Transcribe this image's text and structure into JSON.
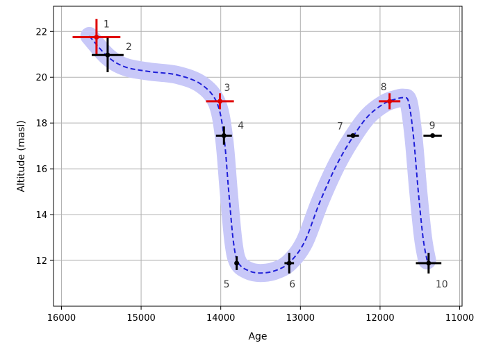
{
  "chart_data": {
    "type": "scatter",
    "xlabel": "Age",
    "ylabel": "Altitude (masl)",
    "xlim": [
      16100,
      10970
    ],
    "ylim": [
      10.0,
      23.1
    ],
    "x_inverted": true,
    "grid": true,
    "xticks": [
      16000,
      15000,
      14000,
      13000,
      12000,
      11000
    ],
    "xtick_labels": [
      "16000",
      "15000",
      "14000",
      "13000",
      "12000",
      "11000"
    ],
    "yticks": [
      12,
      14,
      16,
      18,
      20,
      22
    ],
    "ytick_labels": [
      "12",
      "14",
      "16",
      "18",
      "20",
      "22"
    ],
    "colors": {
      "highlight": "#e00000",
      "normal": "#000000",
      "band": "#c8c8f8",
      "curve": "#1f1fd8",
      "grid": "#b0b0b0"
    },
    "points": [
      {
        "label": "1",
        "x": 15560,
        "y": 21.75,
        "xerr": 300,
        "yerr": 0.8,
        "color": "highlight"
      },
      {
        "label": "2",
        "x": 15420,
        "y": 20.97,
        "xerr": 200,
        "yerr": 0.75,
        "color": "normal"
      },
      {
        "label": "3",
        "x": 14010,
        "y": 18.95,
        "xerr": 175,
        "yerr": 0.35,
        "color": "highlight"
      },
      {
        "label": "4",
        "x": 13960,
        "y": 17.45,
        "xerr": 100,
        "yerr": 0.4,
        "color": "normal"
      },
      {
        "label": "5",
        "x": 13800,
        "y": 11.88,
        "xerr": 0,
        "yerr": 0.3,
        "color": "normal"
      },
      {
        "label": "6",
        "x": 13140,
        "y": 11.88,
        "xerr": 60,
        "yerr": 0.45,
        "color": "normal"
      },
      {
        "label": "7",
        "x": 12340,
        "y": 17.45,
        "xerr": 75,
        "yerr": 0.1,
        "color": "normal"
      },
      {
        "label": "8",
        "x": 11880,
        "y": 18.95,
        "xerr": 135,
        "yerr": 0.35,
        "color": "highlight"
      },
      {
        "label": "9",
        "x": 11340,
        "y": 17.45,
        "xerr": 115,
        "yerr": 0.05,
        "color": "normal"
      },
      {
        "label": "10",
        "x": 11390,
        "y": 11.88,
        "xerr": 160,
        "yerr": 0.45,
        "color": "normal"
      }
    ],
    "curve": [
      [
        15650,
        21.8
      ],
      [
        15420,
        20.9
      ],
      [
        15200,
        20.45
      ],
      [
        14900,
        20.25
      ],
      [
        14550,
        20.1
      ],
      [
        14250,
        19.7
      ],
      [
        14050,
        18.9
      ],
      [
        13960,
        17.4
      ],
      [
        13900,
        15.0
      ],
      [
        13840,
        12.8
      ],
      [
        13780,
        11.9
      ],
      [
        13650,
        11.55
      ],
      [
        13500,
        11.45
      ],
      [
        13320,
        11.55
      ],
      [
        13140,
        11.9
      ],
      [
        12950,
        12.8
      ],
      [
        12750,
        14.6
      ],
      [
        12540,
        16.2
      ],
      [
        12340,
        17.4
      ],
      [
        12150,
        18.3
      ],
      [
        11950,
        18.85
      ],
      [
        11800,
        19.05
      ],
      [
        11700,
        19.1
      ],
      [
        11640,
        18.9
      ],
      [
        11580,
        17.4
      ],
      [
        11520,
        15.0
      ],
      [
        11460,
        13.0
      ],
      [
        11410,
        12.0
      ]
    ]
  }
}
